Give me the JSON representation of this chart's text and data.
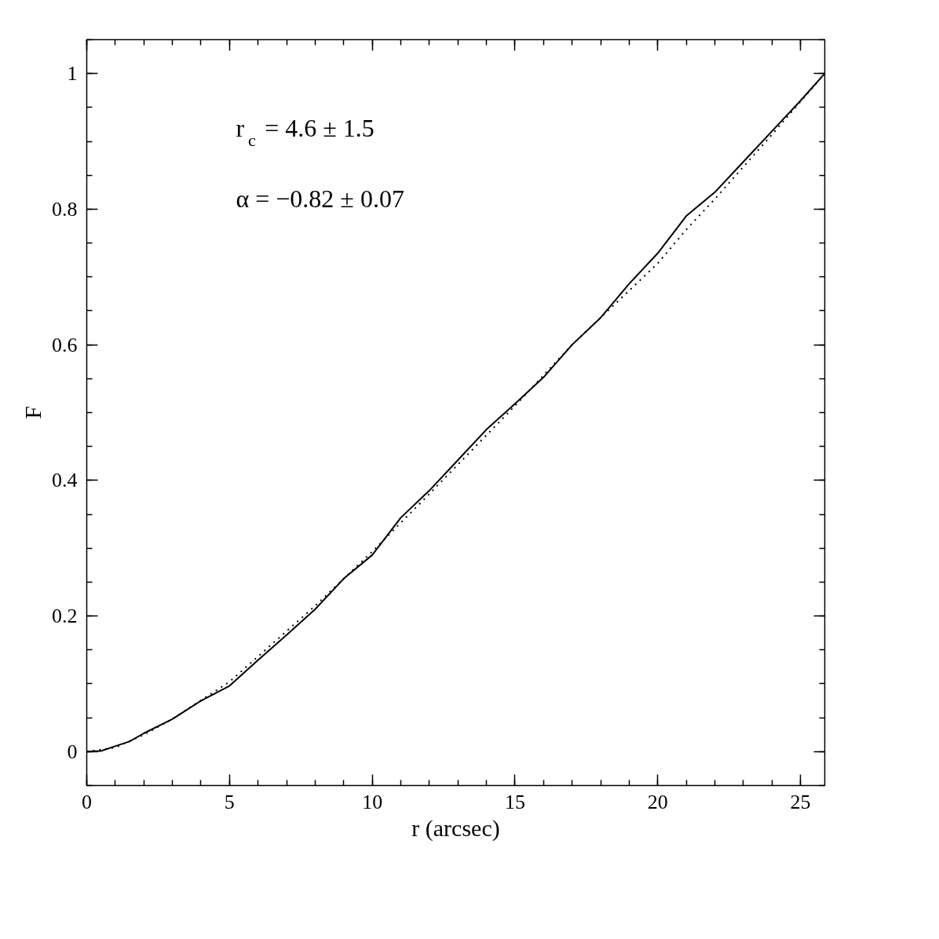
{
  "chart_data": {
    "type": "line",
    "xlabel": "r (arcsec)",
    "ylabel": "F",
    "xlim": [
      0,
      25.85
    ],
    "ylim": [
      -0.05,
      1.05
    ],
    "xticks": [
      0,
      5,
      10,
      15,
      20,
      25
    ],
    "yticks": [
      0,
      0.2,
      0.4,
      0.6,
      0.8,
      1
    ],
    "grid": false,
    "marker": "none",
    "annotations": [
      "r$_{c}$ = 4.6 ± 1.5",
      "α = −0.82 ± 0.07"
    ],
    "series": [
      {
        "color": "#000000",
        "line_style": "solid",
        "x": [
          0,
          0.5,
          1,
          1.5,
          2,
          3,
          4,
          5,
          6,
          7,
          8,
          9,
          10,
          11,
          12,
          13,
          14,
          15,
          16,
          17,
          18,
          19,
          20,
          21,
          22,
          23,
          24,
          25,
          25.85
        ],
        "values": [
          0,
          0.001,
          0.008,
          0.015,
          0.027,
          0.048,
          0.075,
          0.097,
          0.135,
          0.172,
          0.21,
          0.255,
          0.29,
          0.345,
          0.385,
          0.43,
          0.475,
          0.513,
          0.552,
          0.6,
          0.64,
          0.69,
          0.735,
          0.79,
          0.825,
          0.87,
          0.915,
          0.96,
          1.0
        ]
      },
      {
        "color": "#000000",
        "line_style": "dotted",
        "x": [
          0,
          1,
          2,
          3,
          5,
          8,
          10,
          12,
          15,
          17,
          19,
          20,
          21,
          22,
          24,
          25.85
        ],
        "values": [
          0,
          0.006,
          0.025,
          0.048,
          0.103,
          0.215,
          0.295,
          0.38,
          0.51,
          0.6,
          0.68,
          0.72,
          0.77,
          0.815,
          0.91,
          1.0
        ]
      }
    ]
  }
}
